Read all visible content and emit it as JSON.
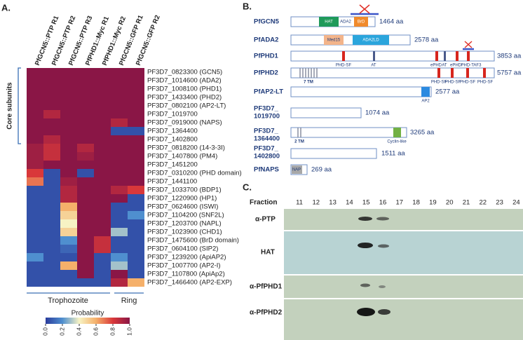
{
  "panel_a": {
    "label": "A.",
    "columns": [
      "PfGCN5::PTP R1",
      "PfGCN5::PTP R2",
      "PfGCN5::PTP R3",
      "PfPHD1::Myc R1",
      "PfPHD1::Myc R2",
      "PfGCN5::GFP R1",
      "PfGCN5::GFP R2"
    ],
    "rows": [
      "PF3D7_0823300 (GCN5)",
      "PF3D7_1014600 (ADA2)",
      "PF3D7_1008100 (PHD1)",
      "PF3D7_1433400 (PHD2)",
      "PF3D7_0802100 (AP2-LT)",
      "PF3D7_1019700",
      "PF3D7_0919000 (NAPS)",
      "PF3D7_1364400",
      "PF3D7_1402800",
      "PF3D7_0818200 (14-3-3I)",
      "PF3D7_1407800 (PM4)",
      "PF3D7_1451200",
      "PF3D7_0310200 (PHD domain)",
      "PF3D7_1441100",
      "PF3D7_1033700 (BDP1)",
      "PF3D7_1220900 (HP1)",
      "PF3D7_0624600 (ISWI)",
      "PF3D7_1104200 (SNF2L)",
      "PF3D7_1203700 (NAPL)",
      "PF3D7_1023900 (CHD1)",
      "PF3D7_1475600 (BrD domain)",
      "PF3D7_0604100 (SIP2)",
      "PF3D7_1239200 (ApiAP2)",
      "PF3D7_1007700 (AP2-I)",
      "PF3D7_1107800 (ApiAp2)",
      "PF3D7_1466400 (AP2-EXP)"
    ],
    "values": [
      [
        1,
        1,
        1,
        1,
        1,
        1,
        1
      ],
      [
        1,
        1,
        1,
        1,
        1,
        1,
        1
      ],
      [
        1,
        1,
        1,
        1,
        1,
        1,
        1
      ],
      [
        1,
        1,
        1,
        1,
        1,
        1,
        1
      ],
      [
        1,
        1,
        1,
        1,
        1,
        1,
        1
      ],
      [
        1,
        0.9,
        1,
        1,
        1,
        1,
        1
      ],
      [
        1,
        1,
        1,
        1,
        1,
        0.9,
        1
      ],
      [
        1,
        1,
        1,
        1,
        1,
        0.05,
        0.05
      ],
      [
        1,
        0.9,
        1,
        1,
        1,
        1,
        1
      ],
      [
        0.95,
        0.85,
        1,
        0.9,
        1,
        1,
        1
      ],
      [
        0.95,
        0.85,
        1,
        0.95,
        1,
        1,
        1
      ],
      [
        0.95,
        1,
        1,
        1,
        1,
        1,
        1
      ],
      [
        0.8,
        0.05,
        1,
        0.05,
        1,
        1,
        1
      ],
      [
        0.7,
        0.05,
        0.95,
        1,
        1,
        1,
        1
      ],
      [
        0.05,
        0.05,
        0.9,
        1,
        1,
        0.9,
        0.8
      ],
      [
        0.05,
        0.05,
        0.9,
        1,
        1,
        1,
        0.05
      ],
      [
        0.05,
        0.05,
        0.6,
        1,
        1,
        0.05,
        0.05
      ],
      [
        0.05,
        0.05,
        0.5,
        1,
        1,
        0.05,
        0.2
      ],
      [
        0.05,
        0.05,
        0.4,
        1,
        1,
        0.05,
        0.05
      ],
      [
        0.05,
        0.05,
        0.5,
        1,
        1,
        0.3,
        0.05
      ],
      [
        0.05,
        0.05,
        0.2,
        1,
        0.85,
        0.05,
        0.05
      ],
      [
        0.05,
        0.05,
        0.1,
        1,
        0.85,
        0.05,
        0.05
      ],
      [
        0.2,
        0.05,
        0.05,
        1,
        0.05,
        0.2,
        0.05
      ],
      [
        0.05,
        0.05,
        0.6,
        1,
        0.05,
        0.3,
        0.05
      ],
      [
        0.05,
        0.05,
        0.05,
        1,
        0.05,
        1,
        0.05
      ],
      [
        0.05,
        0.05,
        0.05,
        0.05,
        0.05,
        0.9,
        0.6
      ]
    ],
    "core_label": "Core subunits",
    "groups": [
      "Trophozoite",
      "Ring"
    ],
    "colorbar": {
      "title": "Probability",
      "lim": [
        0,
        1
      ],
      "ticks": [
        {
          "value": 0,
          "label": "0.0"
        },
        {
          "value": 0.2,
          "label": "0.2"
        },
        {
          "value": 0.4,
          "label": "0.4"
        },
        {
          "value": 0.6,
          "label": "0.6"
        },
        {
          "value": 0.8,
          "label": "0.8"
        },
        {
          "value": 1,
          "label": "1.0"
        }
      ]
    }
  },
  "panel_b": {
    "label": "B.",
    "proteins": [
      {
        "name": "PfGCN5",
        "length": "1464 aa",
        "domains": [
          "HAT",
          "ADA2",
          "BrD"
        ]
      },
      {
        "name": "PfADA2",
        "length": "2578 aa",
        "domains": [
          "Med15",
          "ADA2LD"
        ]
      },
      {
        "name": "PfPHD1",
        "length": "3853 aa",
        "domains": [
          "PHD-SF",
          "AT",
          "ePHD",
          "AT",
          "ePHD",
          "PHD-TAF3"
        ]
      },
      {
        "name": "PfPHD2",
        "length": "5757 aa",
        "domains": [
          "7 TM",
          "PHD-SF",
          "PHD-SF",
          "PHD-SF",
          "PHD-SF"
        ]
      },
      {
        "name": "PfAP2-LT",
        "length": "2577 aa",
        "domains": [
          "AP2"
        ]
      },
      {
        "name": [
          "PF3D7_",
          "1019700"
        ],
        "length": "1074 aa"
      },
      {
        "name": [
          "PF3D7_",
          "1364400"
        ],
        "length": "3265 aa",
        "domains": [
          "2 TM",
          "Cyclin-like"
        ]
      },
      {
        "name": [
          "PF3D7_",
          "1402800"
        ],
        "length": "1511 aa"
      },
      {
        "name": "PfNAPS",
        "length": "269 aa",
        "domains": [
          "NAP"
        ]
      }
    ]
  },
  "panel_c": {
    "label": "C.",
    "fraction_label": "Fraction",
    "fractions": [
      "11",
      "12",
      "13",
      "14",
      "15",
      "16",
      "17",
      "18",
      "19",
      "20",
      "21",
      "22",
      "23",
      "24"
    ],
    "blots": [
      "α-PTP",
      "HAT",
      "α-PfPHD1",
      "α-PfPHD2"
    ]
  }
}
